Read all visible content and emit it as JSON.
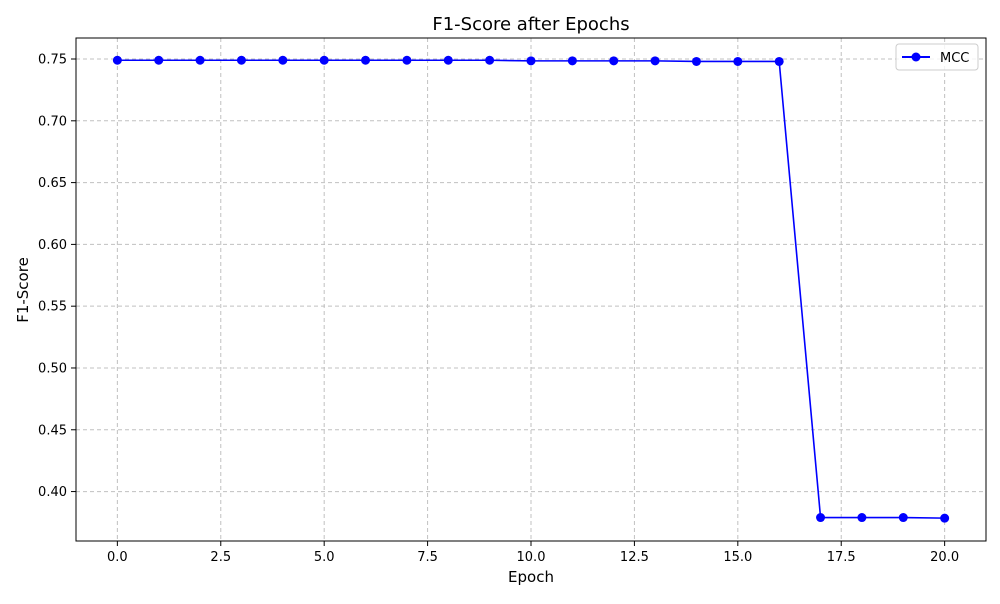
{
  "chart_data": {
    "type": "line",
    "title": "F1-Score after Epochs",
    "xlabel": "Epoch",
    "ylabel": "F1-Score",
    "xlim": [
      -1.0,
      21.0
    ],
    "ylim": [
      0.36,
      0.767
    ],
    "xticks": [
      "0.0",
      "2.5",
      "5.0",
      "7.5",
      "10.0",
      "12.5",
      "15.0",
      "17.5",
      "20.0"
    ],
    "yticks": [
      "0.40",
      "0.45",
      "0.50",
      "0.55",
      "0.60",
      "0.65",
      "0.70",
      "0.75"
    ],
    "grid": true,
    "legend_position": "top-right",
    "series": [
      {
        "name": "MCC",
        "color": "#0000ff",
        "marker": "circle",
        "x": [
          0,
          1,
          2,
          3,
          4,
          5,
          6,
          7,
          8,
          9,
          10,
          11,
          12,
          13,
          14,
          15,
          16,
          17,
          18,
          19,
          20
        ],
        "values": [
          0.749,
          0.749,
          0.749,
          0.749,
          0.749,
          0.749,
          0.749,
          0.749,
          0.749,
          0.749,
          0.7485,
          0.7485,
          0.7485,
          0.7485,
          0.748,
          0.748,
          0.748,
          0.379,
          0.379,
          0.379,
          0.3785
        ]
      }
    ]
  }
}
